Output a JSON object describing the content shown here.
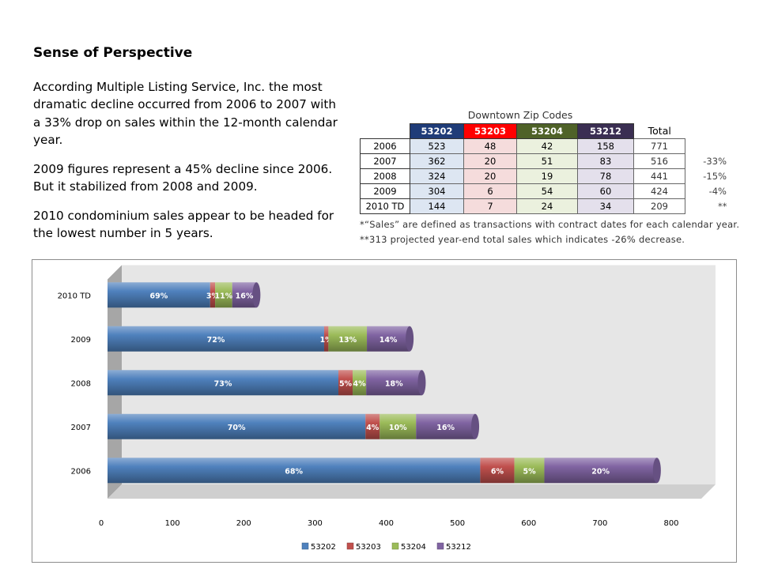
{
  "intro": {
    "title": "Sense of Perspective",
    "paragraphs": [
      "According Multiple Listing Service, Inc. the most dramatic decline occurred from 2006 to 2007 with a 33% drop on sales within the 12-month calendar year.",
      "2009 figures represent a 45% decline since 2006. But it stabilized from 2008 and 2009.",
      "2010 condominium sales appear to be headed for the lowest number in 5 years."
    ]
  },
  "zip_table": {
    "caption": "Downtown Zip Codes",
    "headers": [
      "53202",
      "53203",
      "53204",
      "53212"
    ],
    "total_label": "Total",
    "rows": [
      {
        "year": "2006",
        "values": [
          "523",
          "48",
          "42",
          "158"
        ],
        "total": "771",
        "change": ""
      },
      {
        "year": "2007",
        "values": [
          "362",
          "20",
          "51",
          "83"
        ],
        "total": "516",
        "change": "-33%"
      },
      {
        "year": "2008",
        "values": [
          "324",
          "20",
          "19",
          "78"
        ],
        "total": "441",
        "change": "-15%"
      },
      {
        "year": "2009",
        "values": [
          "304",
          "6",
          "54",
          "60"
        ],
        "total": "424",
        "change": "-4%"
      },
      {
        "year": "2010 TD",
        "values": [
          "144",
          "7",
          "24",
          "34"
        ],
        "total": "209",
        "change": "**"
      }
    ],
    "notes": [
      "*“Sales” are defined as transactions with contract dates for each calendar year.",
      "**313 projected year-end total sales which indicates -26% decrease."
    ]
  },
  "chart_data": {
    "type": "bar",
    "orientation": "horizontal",
    "stacked": true,
    "three_d": true,
    "categories": [
      "2006",
      "2007",
      "2008",
      "2009",
      "2010 TD"
    ],
    "series": [
      {
        "name": "53202",
        "color": "#4f81bd",
        "values": [
          523,
          362,
          324,
          304,
          144
        ],
        "labels": [
          "68%",
          "70%",
          "73%",
          "72%",
          "69%"
        ]
      },
      {
        "name": "53203",
        "color": "#c0504d",
        "values": [
          48,
          20,
          20,
          6,
          7
        ],
        "labels": [
          "6%",
          "4%",
          "5%",
          "1%",
          "3%"
        ]
      },
      {
        "name": "53204",
        "color": "#9bbb59",
        "values": [
          42,
          51,
          19,
          54,
          24
        ],
        "labels": [
          "5%",
          "10%",
          "4%",
          "13%",
          "11%"
        ]
      },
      {
        "name": "53212",
        "color": "#8064a2",
        "values": [
          158,
          83,
          78,
          60,
          34
        ],
        "labels": [
          "20%",
          "16%",
          "18%",
          "14%",
          "16%"
        ]
      }
    ],
    "xlim": [
      0,
      800
    ],
    "xticks": [
      "0",
      "100",
      "200",
      "300",
      "400",
      "500",
      "600",
      "700",
      "800"
    ],
    "legend_position": "bottom",
    "grid": false
  }
}
